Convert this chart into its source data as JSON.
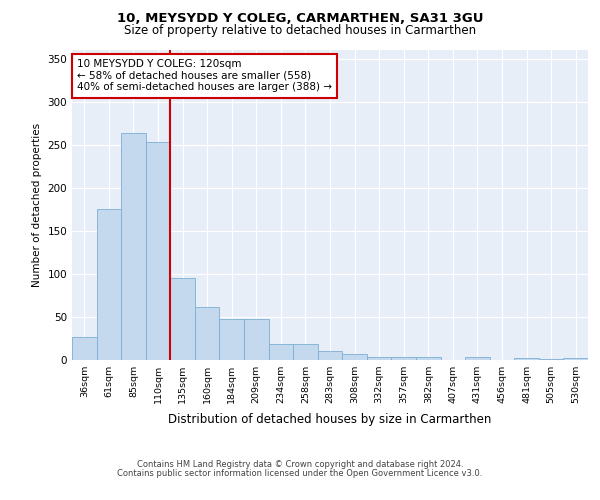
{
  "title": "10, MEYSYDD Y COLEG, CARMARTHEN, SA31 3GU",
  "subtitle": "Size of property relative to detached houses in Carmarthen",
  "xlabel": "Distribution of detached houses by size in Carmarthen",
  "ylabel": "Number of detached properties",
  "categories": [
    "36sqm",
    "61sqm",
    "85sqm",
    "110sqm",
    "135sqm",
    "160sqm",
    "184sqm",
    "209sqm",
    "234sqm",
    "258sqm",
    "283sqm",
    "308sqm",
    "332sqm",
    "357sqm",
    "382sqm",
    "407sqm",
    "431sqm",
    "456sqm",
    "481sqm",
    "505sqm",
    "530sqm"
  ],
  "values": [
    27,
    175,
    264,
    253,
    95,
    62,
    48,
    48,
    19,
    19,
    10,
    7,
    4,
    4,
    4,
    0,
    3,
    0,
    2,
    1,
    2
  ],
  "bar_color": "#c5d9ee",
  "bar_edge_color": "#7aafd4",
  "vline_color": "#cc0000",
  "annotation_text": "10 MEYSYDD Y COLEG: 120sqm\n← 58% of detached houses are smaller (558)\n40% of semi-detached houses are larger (388) →",
  "annotation_box_color": "white",
  "annotation_box_edge": "#cc0000",
  "ylim": [
    0,
    360
  ],
  "yticks": [
    0,
    50,
    100,
    150,
    200,
    250,
    300,
    350
  ],
  "background_color": "#e8eef8",
  "footer1": "Contains HM Land Registry data © Crown copyright and database right 2024.",
  "footer2": "Contains public sector information licensed under the Open Government Licence v3.0."
}
